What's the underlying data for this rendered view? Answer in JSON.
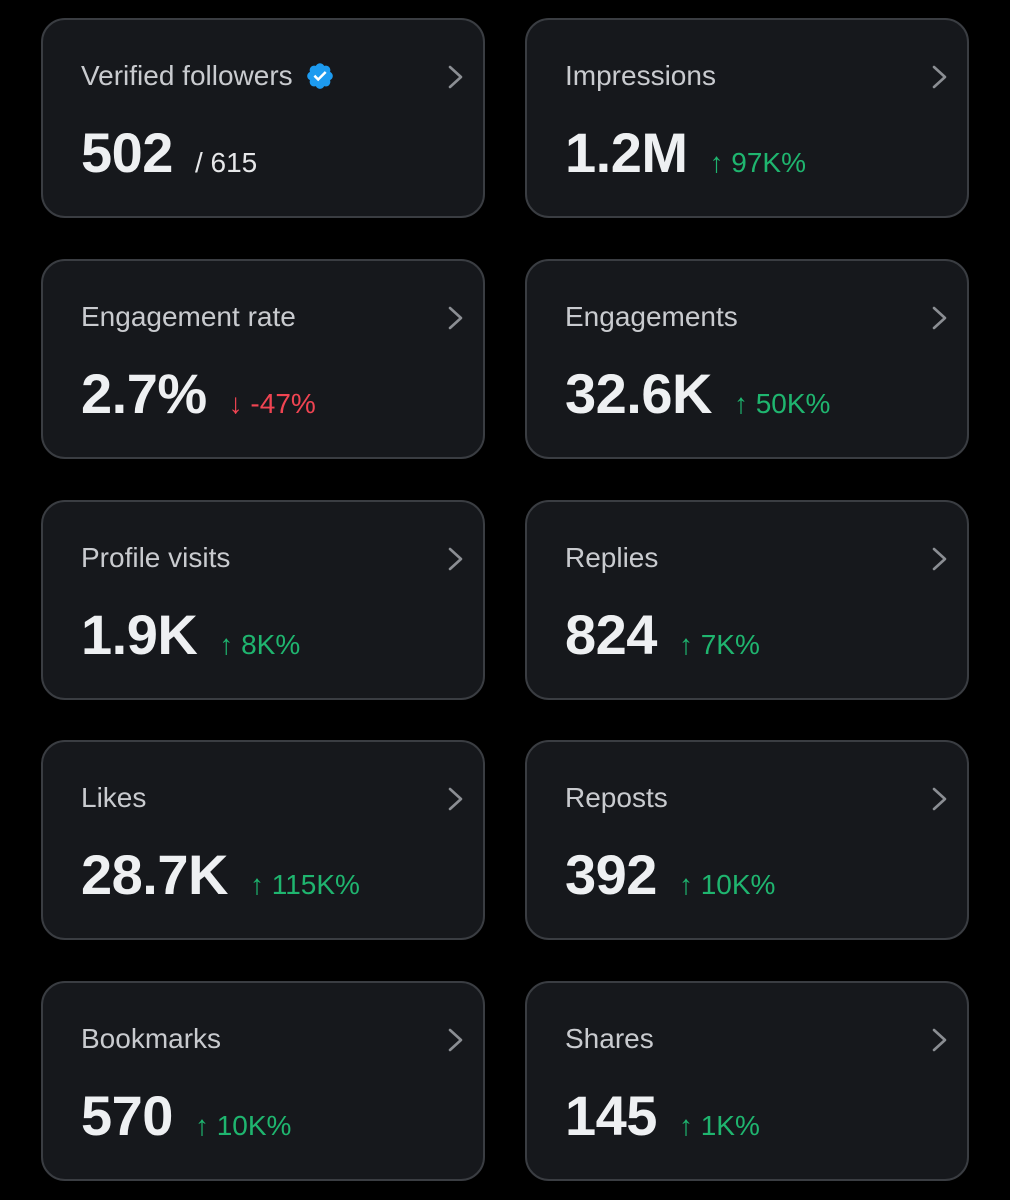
{
  "cards": [
    {
      "label": "Verified followers",
      "value": "502",
      "total": "/ 615"
    },
    {
      "label": "Impressions",
      "value": "1.2M",
      "change": "↑ 97K%",
      "trend": "up"
    },
    {
      "label": "Engagement rate",
      "value": "2.7%",
      "change": "↓ -47%",
      "trend": "down"
    },
    {
      "label": "Engagements",
      "value": "32.6K",
      "change": "↑ 50K%",
      "trend": "up"
    },
    {
      "label": "Profile visits",
      "value": "1.9K",
      "change": "↑ 8K%",
      "trend": "up"
    },
    {
      "label": "Replies",
      "value": "824",
      "change": "↑ 7K%",
      "trend": "up"
    },
    {
      "label": "Likes",
      "value": "28.7K",
      "change": "↑ 115K%",
      "trend": "up"
    },
    {
      "label": "Reposts",
      "value": "392",
      "change": "↑ 10K%",
      "trend": "up"
    },
    {
      "label": "Bookmarks",
      "value": "570",
      "change": "↑ 10K%",
      "trend": "up"
    },
    {
      "label": "Shares",
      "value": "145",
      "change": "↑ 1K%",
      "trend": "up"
    }
  ],
  "colors": {
    "background": "#000000",
    "card": "#16181c",
    "border": "#3a3d42",
    "up": "#1fb56f",
    "down": "#f04452",
    "verified": "#1d9bf0"
  },
  "icons": {
    "verified": "verified-badge-icon",
    "chevron": "chevron-right-icon"
  }
}
